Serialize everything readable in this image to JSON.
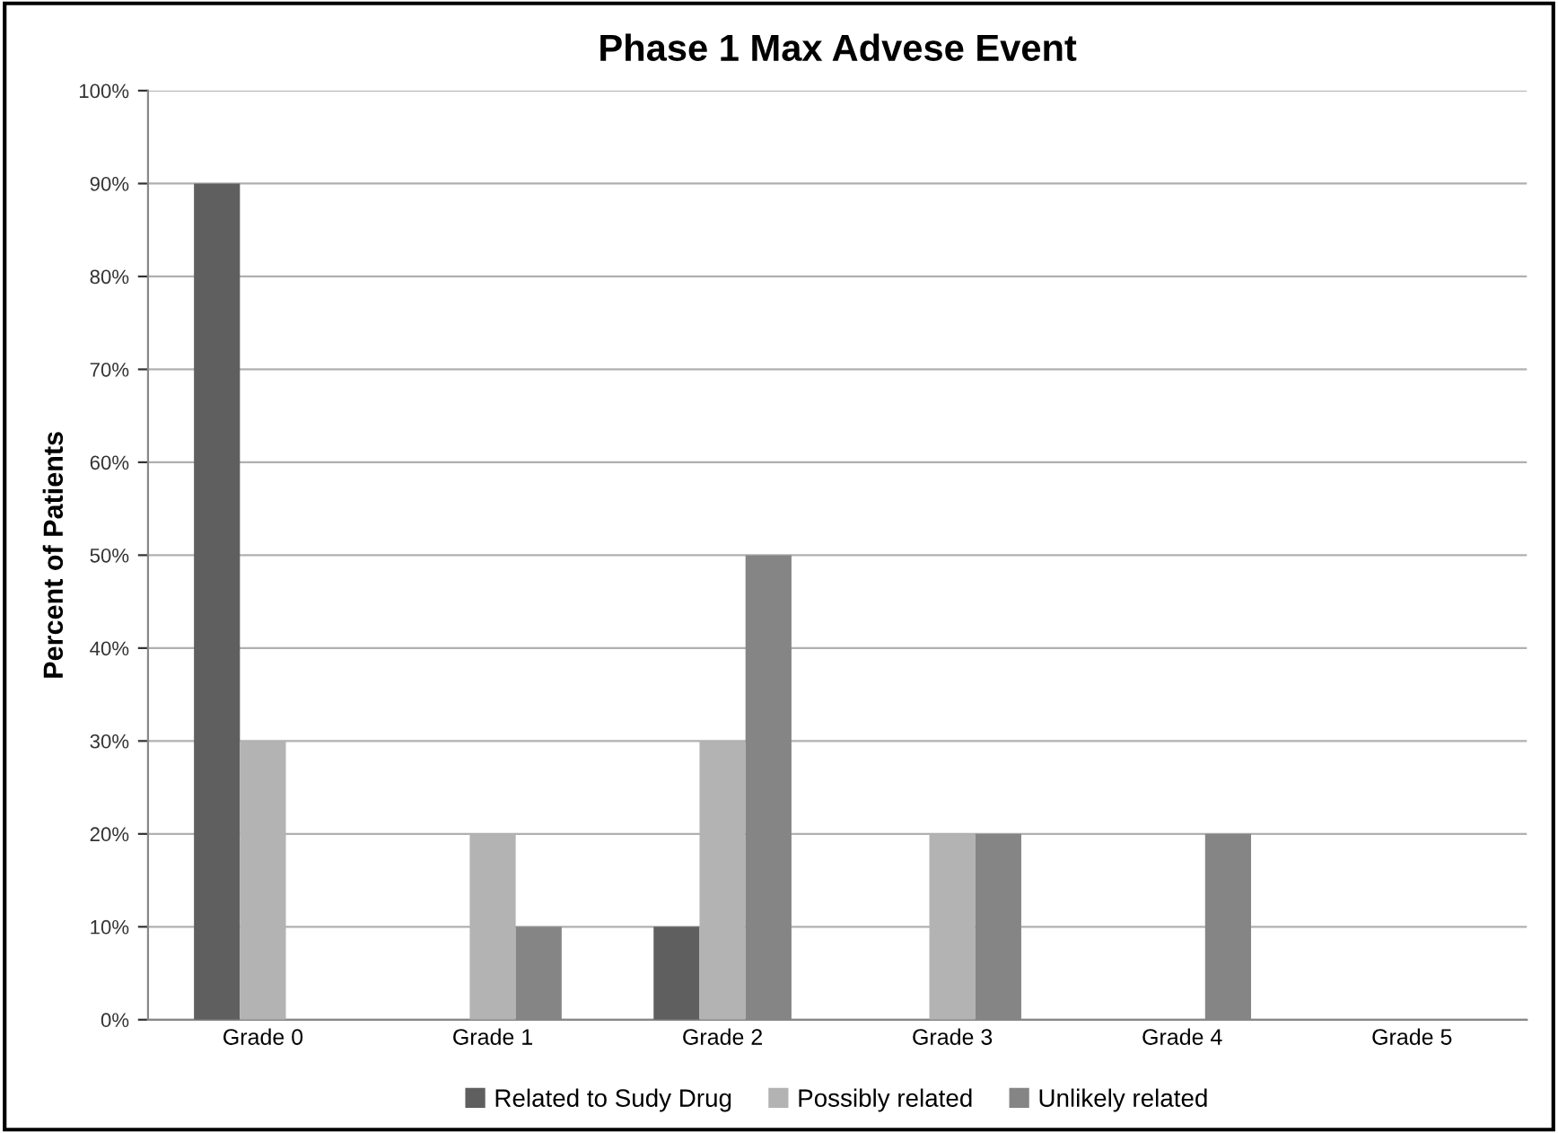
{
  "chart_data": {
    "type": "bar",
    "title": "Phase 1 Max Advese Event",
    "ylabel": "Percent of Patients",
    "categories": [
      "Grade 0",
      "Grade 1",
      "Grade 2",
      "Grade 3",
      "Grade 4",
      "Grade 5"
    ],
    "series": [
      {
        "name": "Related to Sudy Drug",
        "color": "#5f5f5f",
        "values": [
          90,
          0,
          10,
          0,
          0,
          0
        ]
      },
      {
        "name": "Possibly related",
        "color": "#b3b3b3",
        "values": [
          30,
          20,
          30,
          20,
          0,
          0
        ]
      },
      {
        "name": "Unlikely related",
        "color": "#858585",
        "values": [
          0,
          10,
          50,
          20,
          20,
          0
        ]
      }
    ],
    "ylim": [
      0,
      100
    ],
    "yticks": [
      {
        "value": 0,
        "label": "0%"
      },
      {
        "value": 10,
        "label": "10%"
      },
      {
        "value": 20,
        "label": "20%"
      },
      {
        "value": 30,
        "label": "30%"
      },
      {
        "value": 40,
        "label": "40%"
      },
      {
        "value": 50,
        "label": "50%"
      },
      {
        "value": 60,
        "label": "60%"
      },
      {
        "value": 70,
        "label": "70%"
      },
      {
        "value": 80,
        "label": "80%"
      },
      {
        "value": 90,
        "label": "90%"
      },
      {
        "value": 100,
        "label": "100%"
      }
    ],
    "grid": "y",
    "legend": "bottom"
  }
}
